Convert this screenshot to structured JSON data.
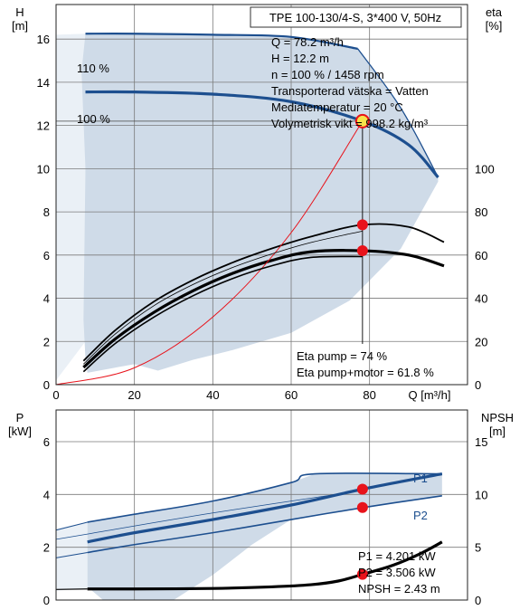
{
  "info_box": {
    "title": "TPE 100-130/4-S, 3*400 V, 50Hz",
    "lines": [
      "Q = 78.2 m³/h",
      "H = 12.2 m",
      "n = 100 % / 1458 rpm",
      "Transporterad vätska = Vatten",
      "Mediatemperatur = 20 °C",
      "Volymetrisk vikt = 998.2 kg/m³"
    ]
  },
  "eta_box": {
    "lines": [
      "Eta pump = 74 %",
      "Eta pump+motor = 61.8 %"
    ]
  },
  "power_box": {
    "lines": [
      "P1 = 4.201 kW",
      "P2 = 3.506 kW",
      "NPSH = 2.43 m"
    ]
  },
  "colors": {
    "curve_blue": "#1d4f8f",
    "envelope_fill": "#cfdbe8",
    "envelope_light": "#eaf0f6",
    "duty_point": "#e8131b",
    "system_curve": "#e8131b",
    "grid": "#7a7a7a"
  },
  "chart_data": [
    {
      "type": "line",
      "ylabel": "H\n[m]",
      "y2label": "eta\n[%]",
      "xlabel": "Q [m³/h]",
      "xlim": [
        0,
        105
      ],
      "ylim": [
        0,
        17.6
      ],
      "y2lim": [
        0,
        176
      ],
      "xticks": [
        0,
        20,
        40,
        60,
        80
      ],
      "yticks": [
        0,
        2,
        4,
        6,
        8,
        10,
        12,
        14,
        16
      ],
      "y2ticks": [
        0,
        20,
        40,
        60,
        80,
        100
      ],
      "grid": true,
      "series": [
        {
          "name": "110 %",
          "axis": "left",
          "x": [
            7.5,
            20,
            40,
            60,
            77
          ],
          "y": [
            16.25,
            16.25,
            16.2,
            16.1,
            15.55
          ]
        },
        {
          "name": "100 %",
          "axis": "left",
          "x": [
            7.5,
            20,
            40,
            60,
            78.2,
            90,
            97.5
          ],
          "y": [
            13.55,
            13.55,
            13.45,
            13.1,
            12.2,
            11.1,
            9.6
          ]
        },
        {
          "axis": "left",
          "x": [
            77,
            88,
            97.5
          ],
          "y": [
            15.55,
            12.8,
            9.6
          ]
        },
        {
          "axis": "right",
          "x": [
            7,
            15,
            25,
            35,
            45,
            55,
            65,
            78.2,
            90,
            99
          ],
          "y": [
            11,
            25,
            38.5,
            48.5,
            56.5,
            63,
            68.5,
            74,
            73,
            66
          ]
        },
        {
          "axis": "right",
          "x": [
            7,
            15,
            25,
            35,
            45,
            55,
            65,
            78.2,
            90,
            99
          ],
          "y": [
            8,
            21,
            33.5,
            43.5,
            51.5,
            57.5,
            61.5,
            62,
            60,
            55
          ]
        },
        {
          "axis": "left",
          "x": [
            0,
            20,
            40,
            60,
            78.2
          ],
          "y": [
            0,
            0.78,
            3.13,
            7.04,
            12.2
          ]
        }
      ],
      "duty_points": [
        {
          "x": 78.2,
          "y": 12.2,
          "axis": "left"
        },
        {
          "x": 78.2,
          "y": 74,
          "axis": "right"
        },
        {
          "x": 78.2,
          "y": 62,
          "axis": "right"
        }
      ]
    },
    {
      "type": "line",
      "ylabel": "P\n[kW]",
      "y2label": "NPSH\n[m]",
      "xlim": [
        0,
        105
      ],
      "ylim": [
        0,
        7.2
      ],
      "y2lim": [
        0,
        18
      ],
      "yticks": [
        0,
        2,
        4,
        6
      ],
      "y2ticks": [
        0,
        5,
        10,
        15
      ],
      "grid": true,
      "series": [
        {
          "name": "P1",
          "axis": "left",
          "x": [
            8,
            20,
            40,
            60,
            78.2,
            98.5
          ],
          "y": [
            2.2,
            2.55,
            3.05,
            3.6,
            4.2,
            4.78
          ]
        },
        {
          "name": "P2",
          "axis": "left",
          "x": [
            8,
            20,
            40,
            60,
            78.2,
            98.5
          ],
          "y": [
            1.8,
            2.1,
            2.55,
            3.05,
            3.5,
            3.95
          ]
        },
        {
          "axis": "left",
          "x": [
            8,
            20,
            40,
            60,
            66,
            98.5
          ],
          "y": [
            2.95,
            3.25,
            3.75,
            4.45,
            4.78,
            4.78
          ]
        },
        {
          "axis": "right",
          "x": [
            8,
            20,
            40,
            55,
            65,
            72,
            78.2,
            86,
            93,
            98.5
          ],
          "y": [
            1.05,
            1.05,
            1.1,
            1.25,
            1.45,
            1.8,
            2.43,
            3.3,
            4.4,
            5.5
          ]
        }
      ],
      "duty_points": [
        {
          "x": 78.2,
          "y": 4.201,
          "axis": "left"
        },
        {
          "x": 78.2,
          "y": 3.506,
          "axis": "left"
        },
        {
          "x": 78.2,
          "y": 2.43,
          "axis": "right"
        }
      ]
    }
  ]
}
